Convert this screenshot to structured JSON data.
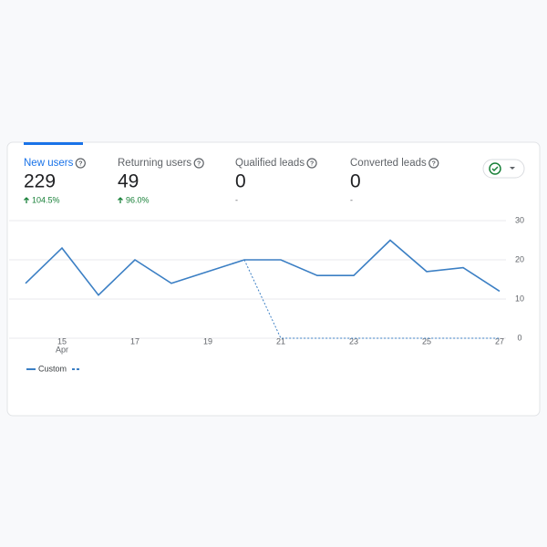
{
  "metrics": [
    {
      "label": "New users",
      "value": "229",
      "change": "104.5%"
    },
    {
      "label": "Returning users",
      "value": "49",
      "change": "96.0%"
    },
    {
      "label": "Qualified leads",
      "value": "0",
      "change": "-"
    },
    {
      "label": "Converted leads",
      "value": "0",
      "change": "-"
    }
  ],
  "chart_data": {
    "type": "line",
    "categories": [
      null,
      "15",
      null,
      "17",
      null,
      "19",
      null,
      "21",
      null,
      "23",
      null,
      "25",
      null,
      "27"
    ],
    "x_sublabel": "Apr",
    "series": [
      {
        "name": "Custom",
        "color": "#3b7fc4",
        "dash": false,
        "values": [
          14,
          23,
          11,
          20,
          14,
          17,
          20,
          20,
          16,
          16,
          25,
          17,
          18,
          12
        ]
      },
      {
        "color": "#3b7fc4",
        "dash": true,
        "values": [
          null,
          null,
          null,
          null,
          null,
          null,
          20,
          0,
          0,
          0,
          0,
          0,
          0,
          0
        ]
      }
    ],
    "ylim": [
      0,
      30
    ],
    "yticks": [
      0,
      10,
      20,
      30
    ],
    "grid": true
  }
}
